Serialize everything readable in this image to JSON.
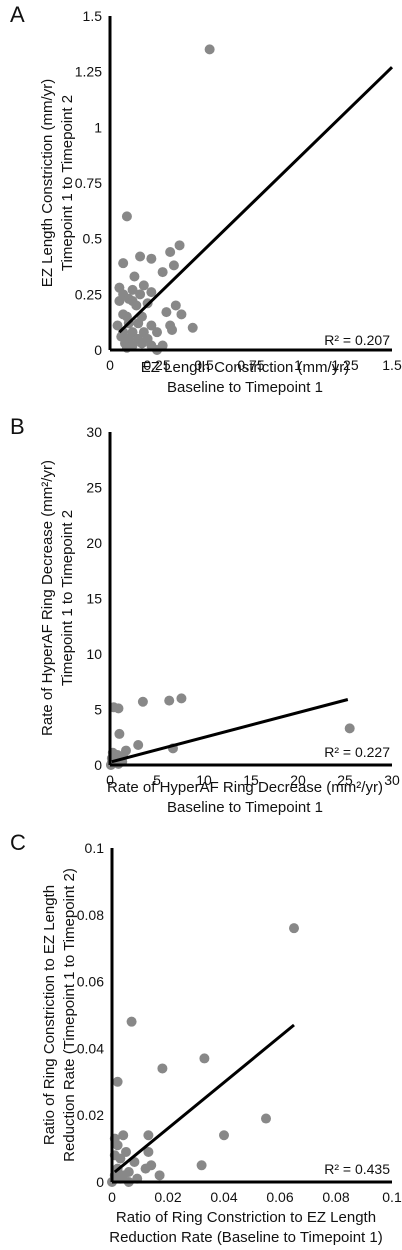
{
  "colors": {
    "point": "#888888",
    "axis": "#000000",
    "fit_line": "#000000"
  },
  "chart_data": [
    {
      "type": "scatter",
      "panel_label": "A",
      "xlabel": [
        "EZ Length Constriction (mm/yr)",
        "Baseline to Timepoint 1"
      ],
      "ylabel": [
        "EZ Length Constriction (mm/yr)",
        "Timepoint 1 to Timepoint 2"
      ],
      "xlim": [
        0,
        1.5
      ],
      "ylim": [
        0,
        1.5
      ],
      "xticks": [
        0,
        0.25,
        0.5,
        0.75,
        1,
        1.25,
        1.5
      ],
      "yticks": [
        0,
        0.25,
        0.5,
        0.75,
        1,
        1.25,
        1.5
      ],
      "xtick_labels": [
        "0",
        "0.25",
        "0.5",
        "0.75",
        "1",
        "1.25",
        "1.5"
      ],
      "ytick_labels": [
        "0",
        "0.25",
        "0.5",
        "0.75",
        "1",
        "1.25",
        "1.5"
      ],
      "annotation": "R² = 0.207",
      "fit_line": {
        "x": [
          0.05,
          1.5
        ],
        "y": [
          0.08,
          1.27
        ]
      },
      "points": [
        [
          0.53,
          1.35
        ],
        [
          0.09,
          0.6
        ],
        [
          0.37,
          0.47
        ],
        [
          0.32,
          0.44
        ],
        [
          0.16,
          0.42
        ],
        [
          0.07,
          0.39
        ],
        [
          0.22,
          0.41
        ],
        [
          0.34,
          0.38
        ],
        [
          0.28,
          0.35
        ],
        [
          0.13,
          0.33
        ],
        [
          0.05,
          0.28
        ],
        [
          0.12,
          0.27
        ],
        [
          0.22,
          0.26
        ],
        [
          0.07,
          0.25
        ],
        [
          0.18,
          0.29
        ],
        [
          0.1,
          0.23
        ],
        [
          0.16,
          0.25
        ],
        [
          0.05,
          0.22
        ],
        [
          0.12,
          0.22
        ],
        [
          0.14,
          0.2
        ],
        [
          0.2,
          0.21
        ],
        [
          0.35,
          0.2
        ],
        [
          0.38,
          0.16
        ],
        [
          0.07,
          0.16
        ],
        [
          0.09,
          0.15
        ],
        [
          0.17,
          0.15
        ],
        [
          0.3,
          0.17
        ],
        [
          0.04,
          0.11
        ],
        [
          0.1,
          0.12
        ],
        [
          0.15,
          0.12
        ],
        [
          0.22,
          0.11
        ],
        [
          0.32,
          0.11
        ],
        [
          0.44,
          0.1
        ],
        [
          0.07,
          0.08
        ],
        [
          0.12,
          0.08
        ],
        [
          0.18,
          0.08
        ],
        [
          0.25,
          0.08
        ],
        [
          0.33,
          0.09
        ],
        [
          0.06,
          0.06
        ],
        [
          0.1,
          0.05
        ],
        [
          0.15,
          0.05
        ],
        [
          0.2,
          0.05
        ],
        [
          0.08,
          0.03
        ],
        [
          0.12,
          0.02
        ],
        [
          0.17,
          0.03
        ],
        [
          0.22,
          0.02
        ],
        [
          0.28,
          0.02
        ],
        [
          0.09,
          0.01
        ],
        [
          0.25,
          0.0
        ]
      ]
    },
    {
      "type": "scatter",
      "panel_label": "B",
      "xlabel": [
        "Rate of HyperAF Ring Decrease (mm²/yr)",
        "Baseline to Timepoint 1"
      ],
      "ylabel": [
        "Rate of HyperAF Ring Decrease (mm²/yr)",
        "Timepoint 1 to Timepoint 2"
      ],
      "xlim": [
        0,
        30
      ],
      "ylim": [
        0,
        30
      ],
      "xticks": [
        0,
        5,
        10,
        15,
        20,
        25,
        30
      ],
      "yticks": [
        0,
        5,
        10,
        15,
        20,
        25,
        30
      ],
      "xtick_labels": [
        "0",
        "5",
        "10",
        "15",
        "20",
        "25",
        "30"
      ],
      "ytick_labels": [
        "0",
        "5",
        "10",
        "15",
        "20",
        "25",
        "30"
      ],
      "annotation": "R² = 0.227",
      "fit_line": {
        "x": [
          0.2,
          25.3
        ],
        "y": [
          0.3,
          5.9
        ]
      },
      "points": [
        [
          7.6,
          6.0
        ],
        [
          6.3,
          5.8
        ],
        [
          3.5,
          5.7
        ],
        [
          0.4,
          5.2
        ],
        [
          0.9,
          5.1
        ],
        [
          25.5,
          3.3
        ],
        [
          1.0,
          2.8
        ],
        [
          3.0,
          1.8
        ],
        [
          6.7,
          1.5
        ],
        [
          1.7,
          1.3
        ],
        [
          0.3,
          1.1
        ],
        [
          0.8,
          0.9
        ],
        [
          1.4,
          0.8
        ],
        [
          0.2,
          0.6
        ],
        [
          0.6,
          0.5
        ],
        [
          1.1,
          0.4
        ],
        [
          0.2,
          0.2
        ],
        [
          0.5,
          0.2
        ],
        [
          0.9,
          0.1
        ],
        [
          1.3,
          0.3
        ],
        [
          0.1,
          0.0
        ]
      ]
    },
    {
      "type": "scatter",
      "panel_label": "C",
      "xlabel": [
        "Ratio of Ring Constriction to EZ Length",
        "Reduction Rate (Baseline to Timepoint 1)"
      ],
      "ylabel": [
        "Ratio of Ring Constriction to EZ Length",
        "Reduction Rate (Timepoint 1 to Timepoint 2)"
      ],
      "xlim": [
        0,
        0.1
      ],
      "ylim": [
        0,
        0.1
      ],
      "xticks": [
        0,
        0.02,
        0.04,
        0.06,
        0.08,
        0.1
      ],
      "yticks": [
        0,
        0.02,
        0.04,
        0.06,
        0.08,
        0.1
      ],
      "xtick_labels": [
        "0",
        "0.02",
        "0.04",
        "0.06",
        "0.08",
        "0.1"
      ],
      "ytick_labels": [
        "0",
        "0.02",
        "0.04",
        "0.06",
        "0.08",
        "0.1"
      ],
      "annotation": "R² = 0.435",
      "fit_line": {
        "x": [
          0.001,
          0.065
        ],
        "y": [
          0.003,
          0.047
        ]
      },
      "points": [
        [
          0.065,
          0.076
        ],
        [
          0.007,
          0.048
        ],
        [
          0.018,
          0.034
        ],
        [
          0.033,
          0.037
        ],
        [
          0.002,
          0.03
        ],
        [
          0.055,
          0.019
        ],
        [
          0.04,
          0.014
        ],
        [
          0.032,
          0.005
        ],
        [
          0.013,
          0.014
        ],
        [
          0.004,
          0.014
        ],
        [
          0.001,
          0.013
        ],
        [
          0.002,
          0.011
        ],
        [
          0.013,
          0.009
        ],
        [
          0.005,
          0.009
        ],
        [
          0.001,
          0.008
        ],
        [
          0.003,
          0.007
        ],
        [
          0.014,
          0.005
        ],
        [
          0.008,
          0.006
        ],
        [
          0.012,
          0.004
        ],
        [
          0.017,
          0.002
        ],
        [
          0.002,
          0.004
        ],
        [
          0.006,
          0.003
        ],
        [
          0.001,
          0.002
        ],
        [
          0.003,
          0.001
        ],
        [
          0.006,
          0.0
        ],
        [
          0.009,
          0.001
        ],
        [
          0.0,
          0.0
        ],
        [
          0.004,
          0.002
        ]
      ]
    }
  ]
}
